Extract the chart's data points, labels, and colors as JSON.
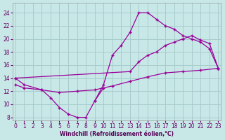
{
  "xlabel": "Windchill (Refroidissement éolien,°C)",
  "bg_color": "#c8e8e8",
  "grid_color": "#a8cccc",
  "line_color": "#990099",
  "curve_dip_x": [
    0,
    1,
    3,
    4,
    5,
    6,
    7,
    8,
    9,
    10
  ],
  "curve_dip_y": [
    14,
    13,
    12.2,
    11.0,
    9.5,
    8.5,
    8.0,
    8.0,
    10.5,
    12.5
  ],
  "curve_rise_x": [
    9,
    10,
    11,
    12,
    13,
    14,
    15,
    16,
    17,
    18,
    19,
    20,
    21,
    22,
    23
  ],
  "curve_rise_y": [
    10.5,
    13.0,
    17.5,
    19.0,
    21.0,
    24.0,
    24.0,
    23.0,
    22.0,
    21.5,
    20.5,
    20.0,
    19.5,
    18.5,
    15.5
  ],
  "curve_upper_x": [
    0,
    13,
    14,
    15,
    16,
    17,
    18,
    19,
    20,
    21,
    22,
    23
  ],
  "curve_upper_y": [
    14.0,
    15.0,
    16.5,
    17.5,
    18.0,
    19.0,
    19.5,
    20.0,
    20.5,
    19.8,
    19.3,
    15.5
  ],
  "curve_lower_x": [
    0,
    1,
    3,
    5,
    7,
    9,
    11,
    13,
    15,
    17,
    19,
    21,
    23
  ],
  "curve_lower_y": [
    13.0,
    12.5,
    12.2,
    11.8,
    12.0,
    12.2,
    12.8,
    13.5,
    14.2,
    14.8,
    15.0,
    15.2,
    15.5
  ],
  "ylim": [
    7.5,
    25.5
  ],
  "xlim": [
    -0.3,
    23.3
  ],
  "yticks": [
    8,
    10,
    12,
    14,
    16,
    18,
    20,
    22,
    24
  ],
  "xticks": [
    0,
    1,
    2,
    3,
    4,
    5,
    6,
    7,
    8,
    9,
    10,
    11,
    12,
    13,
    14,
    15,
    16,
    17,
    18,
    19,
    20,
    21,
    22,
    23
  ]
}
